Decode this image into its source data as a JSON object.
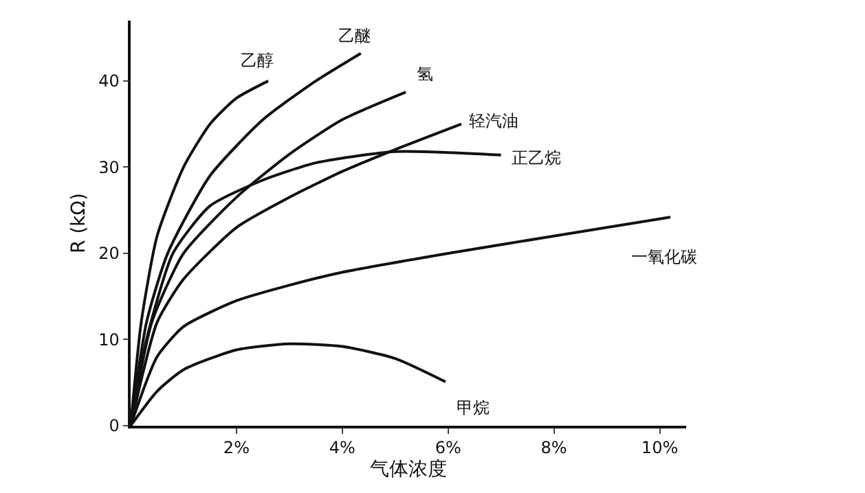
{
  "chart_data": {
    "type": "line",
    "xlabel": "气体浓度",
    "ylabel": "R (kΩ)",
    "xlim": [
      0,
      10.5
    ],
    "ylim": [
      0,
      47
    ],
    "xticks": [
      {
        "value": 2,
        "label": "2%"
      },
      {
        "value": 4,
        "label": "4%"
      },
      {
        "value": 6,
        "label": "6%"
      },
      {
        "value": 8,
        "label": "8%"
      },
      {
        "value": 10,
        "label": "10%"
      }
    ],
    "yticks": [
      0,
      10,
      20,
      30,
      40
    ],
    "legend": false,
    "marker": "none",
    "line_style": "solid",
    "series": [
      {
        "name": "乙醇",
        "color": "#111111",
        "x": [
          0,
          0.2,
          0.5,
          1,
          1.5,
          2,
          2.6
        ],
        "values": [
          0,
          12,
          22,
          30,
          35,
          38,
          40
        ]
      },
      {
        "name": "乙醚",
        "color": "#111111",
        "x": [
          0,
          0.3,
          0.7,
          1.5,
          2.5,
          3.5,
          4.35
        ],
        "values": [
          0,
          12,
          20,
          29,
          35.5,
          40,
          43.2
        ]
      },
      {
        "name": "氢",
        "color": "#111111",
        "x": [
          0,
          0.4,
          1,
          2,
          3,
          4,
          5.2
        ],
        "values": [
          0,
          12,
          20,
          26.5,
          31.5,
          35.5,
          38.7
        ]
      },
      {
        "name": "轻汽油",
        "color": "#111111",
        "x": [
          0,
          0.5,
          1,
          2,
          3,
          4,
          4.9,
          6.25
        ],
        "values": [
          0,
          12,
          17,
          23,
          26.5,
          29.5,
          31.8,
          35
        ]
      },
      {
        "name": "正乙烷",
        "color": "#111111",
        "x": [
          0,
          0.3,
          0.8,
          1.5,
          2.5,
          3.5,
          5,
          7
        ],
        "values": [
          0,
          10,
          20,
          25.5,
          28.5,
          30.5,
          31.8,
          31.4
        ]
      },
      {
        "name": "一氧化碳",
        "color": "#111111",
        "x": [
          0,
          0.5,
          1,
          2,
          3,
          4,
          6,
          8,
          10.2
        ],
        "values": [
          0,
          8,
          11.5,
          14.5,
          16.3,
          17.8,
          20,
          22,
          24.2
        ]
      },
      {
        "name": "甲烷",
        "color": "#111111",
        "x": [
          0,
          0.5,
          1,
          2,
          3,
          4,
          5,
          5.95
        ],
        "values": [
          0,
          4,
          6.5,
          8.8,
          9.5,
          9.2,
          7.8,
          5.1
        ]
      }
    ]
  }
}
